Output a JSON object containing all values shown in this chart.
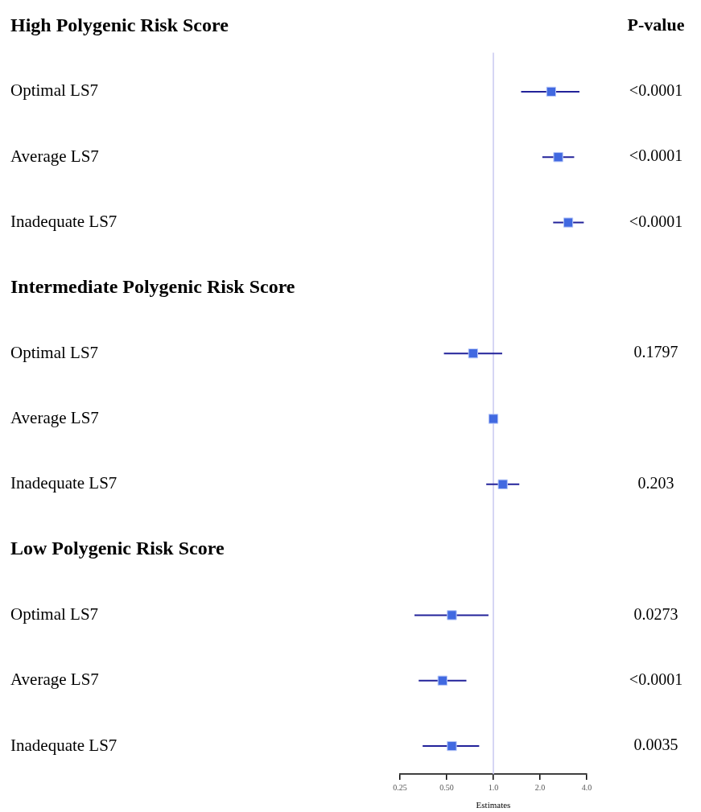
{
  "chart_data": {
    "type": "scatter",
    "orientation": "horizontal",
    "xlabel": "Estimates",
    "categories": [
      "High Polygenic Risk Score",
      "Optimal LS7",
      "Average LS7",
      "Inadequate LS7",
      "Intermediate Polygenic Risk Score",
      "Optimal LS7",
      "Average LS7",
      "Inadequate LS7",
      "Low Polygenic Risk Score",
      "Optimal LS7",
      "Average LS7",
      "Inadequate LS7"
    ],
    "values": [
      null,
      2.36,
      2.62,
      3.04,
      null,
      0.74,
      1.0,
      1.15,
      null,
      0.54,
      0.47,
      0.54
    ],
    "errors": [
      null,
      [
        1.51,
        3.59
      ],
      [
        2.07,
        3.32
      ],
      [
        2.43,
        3.83
      ],
      null,
      [
        0.48,
        1.14
      ],
      null,
      [
        0.9,
        1.47
      ],
      null,
      [
        0.31,
        0.93
      ],
      [
        0.33,
        0.67
      ],
      [
        0.35,
        0.81
      ]
    ],
    "y2_categories": [
      null,
      "<0.0001",
      "<0.0001",
      "<0.0001",
      null,
      "0.1797",
      null,
      "0.203",
      null,
      "0.0273",
      "<0.0001",
      "0.0035"
    ],
    "color": "#4169e1",
    "y2label": "P-value",
    "log": "x",
    "xlim": [
      0.25,
      4
    ],
    "xticks": [
      0.25,
      {
        "value": 0.5,
        "label": "0.50"
      },
      {
        "value": 1,
        "label": "1.0"
      },
      {
        "value": 2,
        "label": "2.0"
      },
      {
        "value": 4,
        "label": "4.0"
      }
    ],
    "ref_lines": [
      {
        "axis": "x",
        "value": 1,
        "color": "#c8c8f0"
      }
    ],
    "marker": "square",
    "grid": false,
    "legend": false
  }
}
